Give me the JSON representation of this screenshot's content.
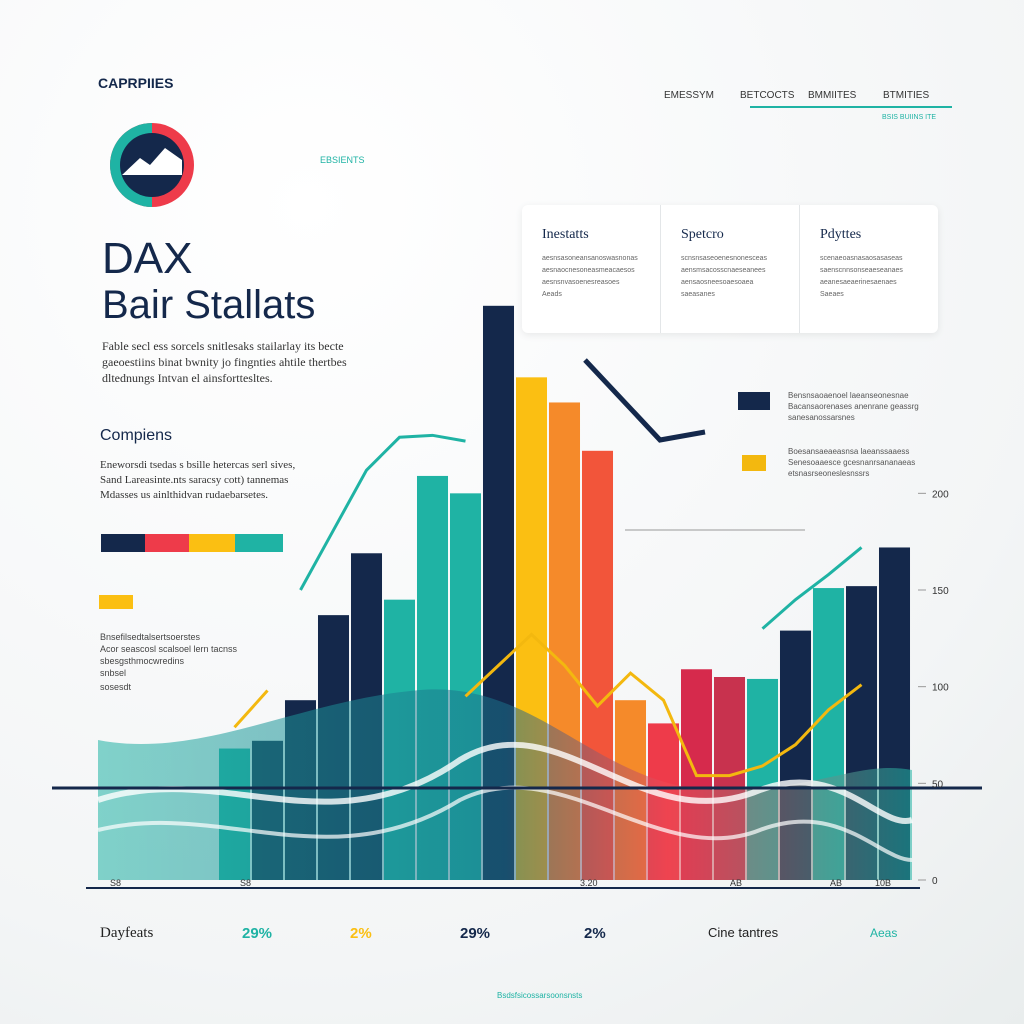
{
  "header": {
    "brand": "CAPRPIIES",
    "nav": [
      "EMESSYM",
      "BETCOCTS",
      "BMMIITES",
      "BTMITIES"
    ],
    "nav_sub": "BSIS BUIINS ITE",
    "tag": "EBSIENTS"
  },
  "hero": {
    "title": "DAX",
    "subtitle": "Bair Stallats",
    "lead": [
      "Fable secl ess sorcels snitlesaks stailarlay its becte",
      "gaeoestiins binat bwnity jo fingnties ahtile thertbes",
      "dltednungs Intvan el ainsforttesltes."
    ]
  },
  "section": {
    "heading": "Compiens",
    "text": [
      "Eneworsdi tsedas s bsille hetercas serl sives,",
      "Sand Lareasinte.nts saracsy cott) tannemas",
      "Mdasses us ainlthidvan rudaebarsetes."
    ]
  },
  "notes": [
    "Bnsefilsedtalsertsoerstes",
    "Acor seascosl scalsoel lern tacnss",
    "sbesgsthmocwredins",
    "snbsel",
    "sosesdt"
  ],
  "card": {
    "columns": [
      {
        "title": "Inestatts",
        "lines": [
          "aesnsasoneansanoswasnonas",
          "aesnaocnesoneasmeacaesos",
          "aesnsnvasoenesreasoes",
          "Aeads"
        ]
      },
      {
        "title": "Spetcro",
        "lines": [
          "scnsnsaseoenesnonesceas",
          "aensmsacosscnaeseanees",
          "aensaosneesoaesoaea",
          "saeasanes"
        ]
      },
      {
        "title": "Pdyttes",
        "lines": [
          "scenaeoasnasaosasaseas",
          "saenscnnsonseaeseanaes",
          "aeanesaeaerinesaenaes",
          "Saeaes"
        ]
      }
    ]
  },
  "callouts": [
    [
      "Bensnsaoaenoel laeanseonesnae",
      "Bacansaorenases anenrane geassrg",
      "sanesanossarsnes"
    ],
    [
      "Boesansaeaeasnsa laeanssaaess",
      "Senesoaaesce gcesnanrsananaeas",
      "etsnasrseoneslesnssrs"
    ]
  ],
  "chart_data": {
    "type": "bar",
    "categories": [
      null,
      null,
      null,
      null,
      null,
      null,
      null,
      null,
      null,
      null,
      null,
      null,
      null,
      null,
      null,
      null,
      null,
      null,
      null,
      null,
      null
    ],
    "values": [
      68,
      72,
      93,
      137,
      169,
      145,
      209,
      200,
      297,
      260,
      247,
      222,
      93,
      81,
      109,
      105,
      104,
      129,
      151,
      152,
      172
    ],
    "colors": [
      "#1fb3a4",
      "#14284b",
      "#14284b",
      "#14284b",
      "#14284b",
      "#1fb3a4",
      "#1fb3a4",
      "#1fb3a4",
      "#14284b",
      "#fbbf12",
      "#f58a2a",
      "#f2553a",
      "#f58a2a",
      "#ee3b4a",
      "#d62a4c",
      "#c8324e",
      "#1fb3a4",
      "#14284b",
      "#1fb3a4",
      "#14284b",
      "#14284b"
    ],
    "lines": [
      {
        "color": "#f3b80f",
        "values": [
          79,
          98,
          null,
          null,
          null,
          null,
          null,
          95,
          111,
          127,
          111,
          90,
          107,
          93,
          54,
          54,
          59,
          70,
          88,
          101,
          null
        ]
      },
      {
        "color": "#1fb3a4",
        "values": [
          null,
          null,
          150,
          181,
          212,
          229,
          230,
          227,
          null,
          null,
          null,
          null,
          null,
          null,
          null,
          null,
          130,
          145,
          158,
          172,
          null
        ]
      }
    ],
    "ylim": [
      0,
      300
    ],
    "yticks": [
      200,
      150,
      100,
      50,
      0
    ],
    "axis_labels": [
      "S8",
      "S8",
      "3.20",
      "AB",
      "AB",
      "10B"
    ]
  },
  "stats": [
    "Dayfeats",
    "29%",
    "2%",
    "29%",
    "2%",
    "Cine tantres",
    "Aeas"
  ],
  "footer": "Bsdsfsicossarsoonsnsts"
}
